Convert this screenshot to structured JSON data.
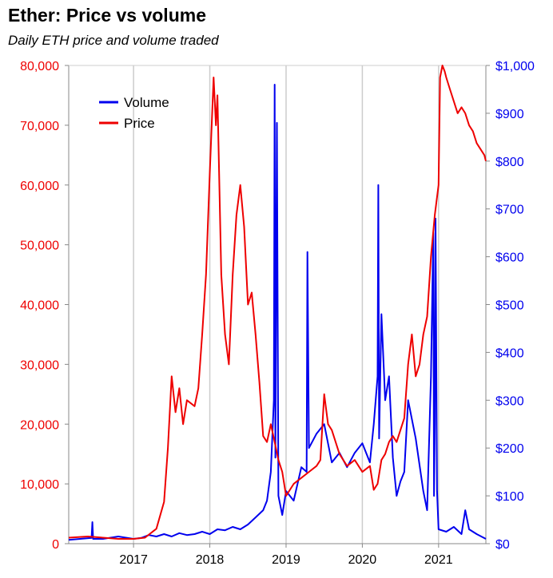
{
  "title": "Ether: Price vs volume",
  "subtitle": "Daily ETH price and volume traded",
  "colors": {
    "volume": "#0000ee",
    "price": "#ee0000",
    "grid": "#cccccc",
    "axis": "#888888"
  },
  "chart_data": {
    "type": "line",
    "xlim": [
      2016.15,
      2021.62
    ],
    "grid": true,
    "legend_position": "top-left",
    "x_ticks": [
      2017,
      2018,
      2019,
      2020,
      2021
    ],
    "x_tick_labels": [
      "2017",
      "2018",
      "2019",
      "2020",
      "2021"
    ],
    "left_axis": {
      "ylim": [
        0,
        80000
      ],
      "ticks": [
        0,
        10000,
        20000,
        30000,
        40000,
        50000,
        60000,
        70000,
        80000
      ],
      "tick_labels": [
        "0",
        "10,000",
        "20,000",
        "30,000",
        "40,000",
        "50,000",
        "60,000",
        "70,000",
        "80,000"
      ],
      "color": "#ee0000"
    },
    "right_axis": {
      "ylim": [
        0,
        1000
      ],
      "ticks": [
        0,
        100,
        200,
        300,
        400,
        500,
        600,
        700,
        800,
        900,
        1000
      ],
      "tick_labels": [
        "$0",
        "$100",
        "$200",
        "$300",
        "$400",
        "$500",
        "$600",
        "$700",
        "$800",
        "$900",
        "$1,000"
      ],
      "color": "#0000ee"
    },
    "series": [
      {
        "name": "Volume",
        "axis": "right",
        "color": "#0000ee",
        "x": [
          2016.15,
          2016.3,
          2016.45,
          2016.46,
          2016.47,
          2016.6,
          2016.8,
          2017.0,
          2017.1,
          2017.2,
          2017.3,
          2017.4,
          2017.5,
          2017.6,
          2017.7,
          2017.8,
          2017.9,
          2018.0,
          2018.1,
          2018.2,
          2018.3,
          2018.4,
          2018.5,
          2018.6,
          2018.7,
          2018.75,
          2018.8,
          2018.84,
          2018.85,
          2018.86,
          2018.88,
          2018.9,
          2018.95,
          2019.0,
          2019.1,
          2019.2,
          2019.27,
          2019.28,
          2019.3,
          2019.4,
          2019.5,
          2019.6,
          2019.7,
          2019.8,
          2019.9,
          2020.0,
          2020.1,
          2020.15,
          2020.2,
          2020.21,
          2020.22,
          2020.25,
          2020.3,
          2020.35,
          2020.4,
          2020.45,
          2020.5,
          2020.55,
          2020.6,
          2020.7,
          2020.8,
          2020.85,
          2020.9,
          2020.93,
          2020.94,
          2020.95,
          2020.96,
          2020.98,
          2021.0,
          2021.1,
          2021.2,
          2021.3,
          2021.35,
          2021.4,
          2021.5,
          2021.62
        ],
        "values": [
          8,
          10,
          12,
          45,
          10,
          10,
          15,
          10,
          12,
          18,
          15,
          20,
          15,
          22,
          18,
          20,
          25,
          20,
          30,
          28,
          35,
          30,
          40,
          55,
          70,
          90,
          150,
          300,
          960,
          180,
          880,
          100,
          60,
          110,
          90,
          160,
          150,
          610,
          200,
          230,
          250,
          170,
          190,
          160,
          190,
          210,
          170,
          250,
          350,
          750,
          220,
          480,
          300,
          350,
          180,
          100,
          130,
          150,
          300,
          220,
          110,
          70,
          350,
          650,
          100,
          250,
          680,
          110,
          30,
          25,
          35,
          20,
          70,
          30,
          20,
          10
        ]
      },
      {
        "name": "Price",
        "axis": "left",
        "color": "#ee0000",
        "x": [
          2016.15,
          2016.4,
          2016.6,
          2016.8,
          2017.0,
          2017.15,
          2017.3,
          2017.4,
          2017.45,
          2017.5,
          2017.55,
          2017.6,
          2017.65,
          2017.7,
          2017.8,
          2017.85,
          2017.9,
          2017.95,
          2018.0,
          2018.05,
          2018.08,
          2018.1,
          2018.15,
          2018.2,
          2018.25,
          2018.3,
          2018.35,
          2018.4,
          2018.45,
          2018.5,
          2018.55,
          2018.6,
          2018.65,
          2018.7,
          2018.75,
          2018.8,
          2018.85,
          2018.9,
          2018.95,
          2019.0,
          2019.1,
          2019.2,
          2019.3,
          2019.4,
          2019.45,
          2019.5,
          2019.55,
          2019.6,
          2019.7,
          2019.8,
          2019.9,
          2020.0,
          2020.1,
          2020.15,
          2020.2,
          2020.25,
          2020.3,
          2020.35,
          2020.4,
          2020.45,
          2020.5,
          2020.55,
          2020.6,
          2020.65,
          2020.7,
          2020.75,
          2020.8,
          2020.85,
          2020.9,
          2020.95,
          2021.0,
          2021.02,
          2021.05,
          2021.08,
          2021.1,
          2021.15,
          2021.2,
          2021.25,
          2021.3,
          2021.35,
          2021.4,
          2021.45,
          2021.5,
          2021.55,
          2021.6,
          2021.62
        ],
        "values": [
          1000,
          1200,
          1000,
          800,
          800,
          1000,
          2500,
          7000,
          16000,
          28000,
          22000,
          26000,
          20000,
          24000,
          23000,
          26000,
          35000,
          45000,
          62000,
          78000,
          70000,
          75000,
          45000,
          35000,
          30000,
          45000,
          55000,
          60000,
          53000,
          40000,
          42000,
          35000,
          27000,
          18000,
          17000,
          20000,
          17000,
          14000,
          12000,
          8000,
          10000,
          11000,
          12000,
          13000,
          14000,
          25000,
          20000,
          19000,
          15000,
          13000,
          14000,
          12000,
          13000,
          9000,
          10000,
          14000,
          15000,
          17000,
          18000,
          17000,
          19000,
          21000,
          30000,
          35000,
          28000,
          30000,
          35000,
          38000,
          48000,
          55000,
          60000,
          78000,
          80000,
          79000,
          78000,
          76000,
          74000,
          72000,
          73000,
          72000,
          70000,
          69000,
          67000,
          66000,
          65000,
          64000
        ]
      }
    ]
  }
}
